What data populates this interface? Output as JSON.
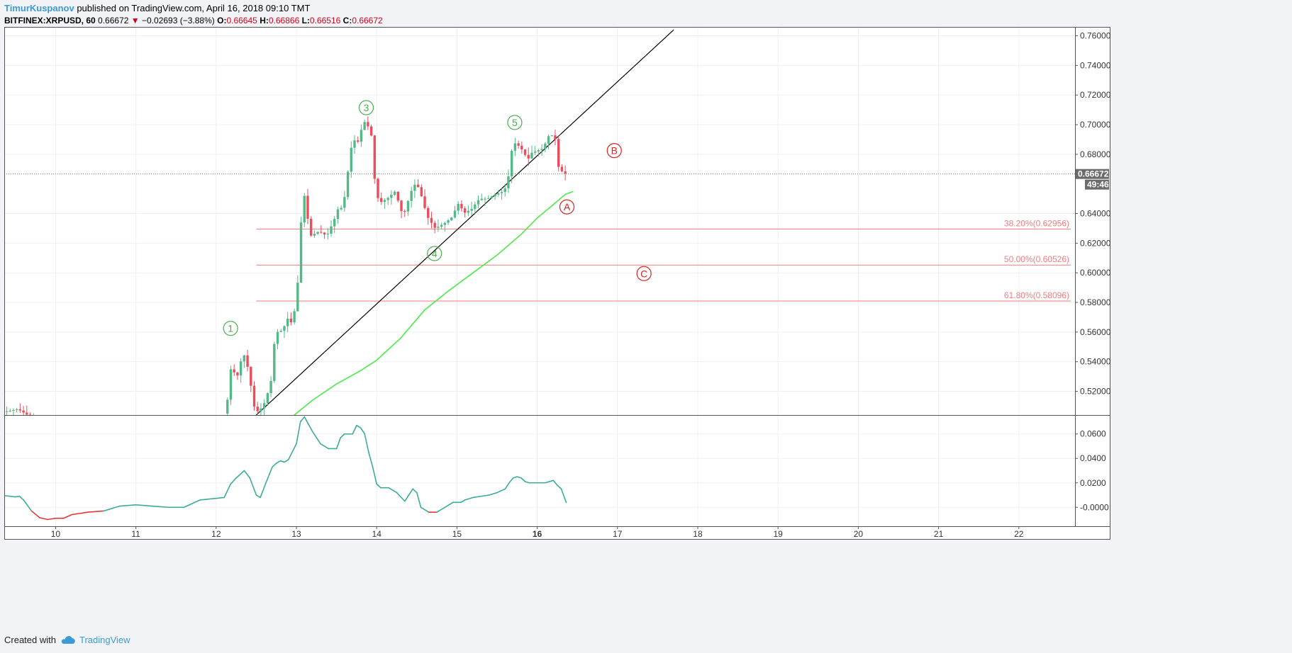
{
  "header": {
    "author": "TimurKuspanov",
    "published_text": " published on TradingView.com, April 16, 2018 09:10 TMT",
    "symbol": "BITFINEX:XRPUSD, 60",
    "last": "0.66672",
    "change": "−0.02693 (−3.88%)",
    "o_label": "O:",
    "o": "0.66645",
    "h_label": "H:",
    "h": "0.66866",
    "l_label": "L:",
    "l": "0.66516",
    "c_label": "C:",
    "c": "0.66672"
  },
  "footer": {
    "created_with": "Created with",
    "brand": "TradingView"
  },
  "colors": {
    "up": "#53b987",
    "down": "#eb4d5c",
    "fib": "#f27d7d",
    "ma": "#4be94b",
    "osc_up": "#3cac9a",
    "osc_down": "#e53935",
    "wave_green": "#4caf50",
    "wave_red": "#e0201e"
  },
  "chart_data": [
    {
      "type": "candlestick",
      "symbol": "BITFINEX:XRPUSD",
      "interval": "60",
      "price_axis_ticks": [
        "0.76000",
        "0.74000",
        "0.72000",
        "0.70000",
        "0.68000",
        "0.66672",
        "0.64000",
        "0.62000",
        "0.60000",
        "0.58000",
        "0.56000",
        "0.54000",
        "0.52000"
      ],
      "price_axis_values": [
        0.76,
        0.74,
        0.72,
        0.7,
        0.68,
        0.64,
        0.62,
        0.6,
        0.58,
        0.56,
        0.54,
        0.52
      ],
      "ylim": [
        0.504,
        0.766
      ],
      "current_price": 0.66672,
      "current_price_label": "0.66672",
      "countdown_label": "49:46",
      "xlim": [
        9.36,
        22.7
      ],
      "x_ticks": [
        10,
        11,
        12,
        13,
        14,
        15,
        16,
        17,
        18,
        19,
        20,
        21,
        22
      ],
      "x_tick_labels": [
        "10",
        "11",
        "12",
        "13",
        "14",
        "15",
        "16",
        "17",
        "18",
        "19",
        "20",
        "21",
        "22"
      ],
      "x_tick_bold": "16",
      "price_path": [
        [
          9.37,
          0.506
        ],
        [
          9.55,
          0.508
        ],
        [
          9.7,
          0.503
        ],
        [
          12.1,
          0.503
        ],
        [
          12.15,
          0.508
        ],
        [
          12.2,
          0.535
        ],
        [
          12.3,
          0.53
        ],
        [
          12.35,
          0.548
        ],
        [
          12.42,
          0.535
        ],
        [
          12.5,
          0.508
        ],
        [
          12.55,
          0.506
        ],
        [
          12.62,
          0.512
        ],
        [
          12.7,
          0.525
        ],
        [
          12.75,
          0.555
        ],
        [
          12.8,
          0.562
        ],
        [
          12.85,
          0.56
        ],
        [
          12.9,
          0.57
        ],
        [
          12.95,
          0.566
        ],
        [
          13.0,
          0.575
        ],
        [
          13.05,
          0.6
        ],
        [
          13.1,
          0.66
        ],
        [
          13.15,
          0.64
        ],
        [
          13.2,
          0.625
        ],
        [
          13.3,
          0.628
        ],
        [
          13.4,
          0.625
        ],
        [
          13.5,
          0.637
        ],
        [
          13.55,
          0.645
        ],
        [
          13.6,
          0.643
        ],
        [
          13.7,
          0.684
        ],
        [
          13.75,
          0.69
        ],
        [
          13.8,
          0.688
        ],
        [
          13.85,
          0.703
        ],
        [
          13.9,
          0.7
        ],
        [
          13.95,
          0.695
        ],
        [
          14.0,
          0.66
        ],
        [
          14.05,
          0.647
        ],
        [
          14.15,
          0.65
        ],
        [
          14.25,
          0.655
        ],
        [
          14.35,
          0.638
        ],
        [
          14.45,
          0.655
        ],
        [
          14.5,
          0.66
        ],
        [
          14.55,
          0.657
        ],
        [
          14.65,
          0.638
        ],
        [
          14.75,
          0.63
        ],
        [
          14.85,
          0.633
        ],
        [
          14.95,
          0.637
        ],
        [
          15.05,
          0.648
        ],
        [
          15.1,
          0.64
        ],
        [
          15.2,
          0.643
        ],
        [
          15.3,
          0.65
        ],
        [
          15.4,
          0.65
        ],
        [
          15.5,
          0.653
        ],
        [
          15.6,
          0.655
        ],
        [
          15.65,
          0.66
        ],
        [
          15.7,
          0.682
        ],
        [
          15.75,
          0.688
        ],
        [
          15.8,
          0.685
        ],
        [
          15.85,
          0.682
        ],
        [
          15.9,
          0.676
        ],
        [
          15.95,
          0.681
        ],
        [
          16.0,
          0.682
        ],
        [
          16.1,
          0.684
        ],
        [
          16.15,
          0.692
        ],
        [
          16.2,
          0.693
        ],
        [
          16.25,
          0.69
        ],
        [
          16.28,
          0.672
        ],
        [
          16.35,
          0.667
        ]
      ],
      "moving_average": [
        [
          12.95,
          0.503
        ],
        [
          13.2,
          0.514
        ],
        [
          13.5,
          0.525
        ],
        [
          13.8,
          0.534
        ],
        [
          14.0,
          0.541
        ],
        [
          14.3,
          0.556
        ],
        [
          14.6,
          0.575
        ],
        [
          14.9,
          0.588
        ],
        [
          15.2,
          0.6
        ],
        [
          15.5,
          0.612
        ],
        [
          15.8,
          0.626
        ],
        [
          16.0,
          0.637
        ],
        [
          16.2,
          0.646
        ],
        [
          16.35,
          0.653
        ],
        [
          16.45,
          0.655
        ]
      ],
      "trendline": [
        [
          12.5,
          0.504
        ],
        [
          17.7,
          0.764
        ]
      ],
      "fibonacci_levels": [
        {
          "label": "38.20%(0.62956)",
          "value": 0.62956
        },
        {
          "label": "50.00%(0.60526)",
          "value": 0.60526
        },
        {
          "label": "61.80%(0.58096)",
          "value": 0.58096
        }
      ],
      "fib_x_start": 12.5,
      "wave_labels": [
        {
          "label": "1",
          "x": 12.18,
          "y": 0.5625,
          "color": "green"
        },
        {
          "label": "3",
          "x": 13.87,
          "y": 0.7115,
          "color": "green"
        },
        {
          "label": "4",
          "x": 14.72,
          "y": 0.613,
          "color": "green"
        },
        {
          "label": "5",
          "x": 15.72,
          "y": 0.7015,
          "color": "green"
        },
        {
          "label": "A",
          "x": 16.37,
          "y": 0.6445,
          "color": "red"
        },
        {
          "label": "B",
          "x": 16.96,
          "y": 0.6825,
          "color": "red"
        },
        {
          "label": "C",
          "x": 17.33,
          "y": 0.5995,
          "color": "red"
        }
      ]
    },
    {
      "type": "line",
      "name": "oscillator",
      "y_ticks": [
        0.06,
        0.04,
        0.02,
        0.0
      ],
      "y_tick_labels": [
        "0.0600",
        "0.0400",
        "0.0200",
        "-0.0000"
      ],
      "ylim": [
        -0.0155,
        0.0755
      ],
      "negative_threshold": 0.0,
      "x": [
        9.37,
        9.5,
        9.55,
        9.6,
        9.7,
        9.8,
        9.9,
        10.0,
        10.1,
        10.2,
        10.4,
        10.6,
        10.8,
        11.0,
        11.2,
        11.4,
        11.6,
        11.8,
        11.95,
        12.1,
        12.18,
        12.25,
        12.35,
        12.42,
        12.5,
        12.55,
        12.62,
        12.7,
        12.75,
        12.8,
        12.85,
        12.9,
        13.0,
        13.05,
        13.1,
        13.15,
        13.2,
        13.3,
        13.4,
        13.5,
        13.55,
        13.6,
        13.7,
        13.75,
        13.8,
        13.85,
        13.9,
        13.95,
        14.0,
        14.05,
        14.15,
        14.25,
        14.35,
        14.45,
        14.5,
        14.55,
        14.65,
        14.75,
        14.85,
        14.95,
        15.05,
        15.1,
        15.2,
        15.3,
        15.4,
        15.5,
        15.6,
        15.65,
        15.7,
        15.75,
        15.8,
        15.85,
        15.9,
        16.0,
        16.1,
        16.2,
        16.25,
        16.3,
        16.36
      ],
      "y": [
        0.0095,
        0.0085,
        0.009,
        0.006,
        -0.003,
        -0.0085,
        -0.01,
        -0.009,
        -0.009,
        -0.006,
        -0.004,
        -0.003,
        0.001,
        0.002,
        0.001,
        0.0,
        0.0,
        0.006,
        0.007,
        0.008,
        0.019,
        0.024,
        0.03,
        0.024,
        0.01,
        0.008,
        0.02,
        0.033,
        0.036,
        0.038,
        0.037,
        0.039,
        0.052,
        0.07,
        0.074,
        0.068,
        0.062,
        0.052,
        0.048,
        0.048,
        0.057,
        0.06,
        0.06,
        0.067,
        0.065,
        0.06,
        0.045,
        0.033,
        0.019,
        0.016,
        0.016,
        0.012,
        0.005,
        0.015,
        0.012,
        0.0,
        -0.004,
        -0.004,
        0.0,
        0.004,
        0.004,
        0.006,
        0.008,
        0.009,
        0.01,
        0.012,
        0.015,
        0.02,
        0.024,
        0.025,
        0.024,
        0.021,
        0.02,
        0.02,
        0.02,
        0.022,
        0.018,
        0.015,
        0.004
      ]
    }
  ]
}
